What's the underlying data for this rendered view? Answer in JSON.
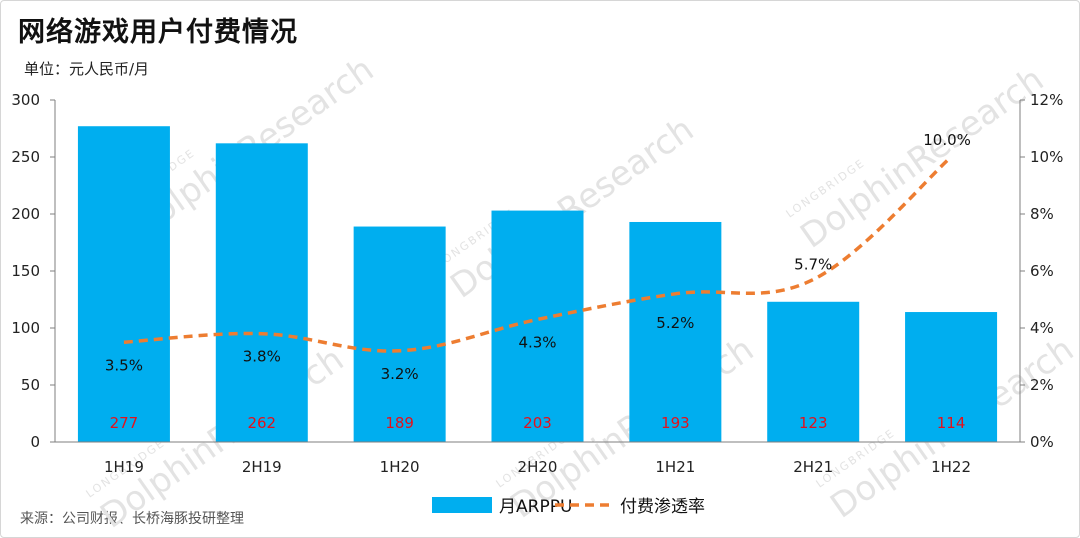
{
  "header": {
    "title": "网络游戏用户付费情况",
    "unit": "单位：元人民币/月"
  },
  "footer": {
    "source": "来源：公司财报、长桥海豚投研整理"
  },
  "watermark": {
    "brand_line": "LONGBRIDGE",
    "name_line": "DolphinResearch"
  },
  "colors": {
    "bar": "#00aeef",
    "line": "#ed7d31",
    "bar_label": "#e4111b",
    "axis": "#7f7f7f"
  },
  "chart_data": {
    "type": "bar",
    "categories": [
      "1H19",
      "2H19",
      "1H20",
      "2H20",
      "1H21",
      "2H21",
      "1H22"
    ],
    "series": [
      {
        "name": "月ARPPU",
        "type": "bar",
        "axis": "left",
        "values": [
          277,
          262,
          189,
          203,
          193,
          123,
          114
        ],
        "labels": [
          "277",
          "262",
          "189",
          "203",
          "193",
          "123",
          "114"
        ]
      },
      {
        "name": "付费渗透率",
        "type": "line",
        "style": "dashed-smooth",
        "axis": "right",
        "values": [
          3.5,
          3.8,
          3.2,
          4.3,
          5.2,
          5.7,
          10.0
        ],
        "labels": [
          "3.5%",
          "3.8%",
          "3.2%",
          "4.3%",
          "5.2%",
          "5.7%",
          "10.0%"
        ]
      }
    ],
    "y_left": {
      "ylim": [
        0,
        300
      ],
      "ticks": [
        0,
        50,
        100,
        150,
        200,
        250,
        300
      ],
      "tick_labels": [
        "0",
        "50",
        "100",
        "150",
        "200",
        "250",
        "300"
      ]
    },
    "y_right": {
      "ylim": [
        0,
        12
      ],
      "ticks": [
        0,
        2,
        4,
        6,
        8,
        10,
        12
      ],
      "tick_labels": [
        "0%",
        "2%",
        "4%",
        "6%",
        "8%",
        "10%",
        "12%"
      ]
    },
    "grid": false,
    "legend": "bottom-center"
  }
}
